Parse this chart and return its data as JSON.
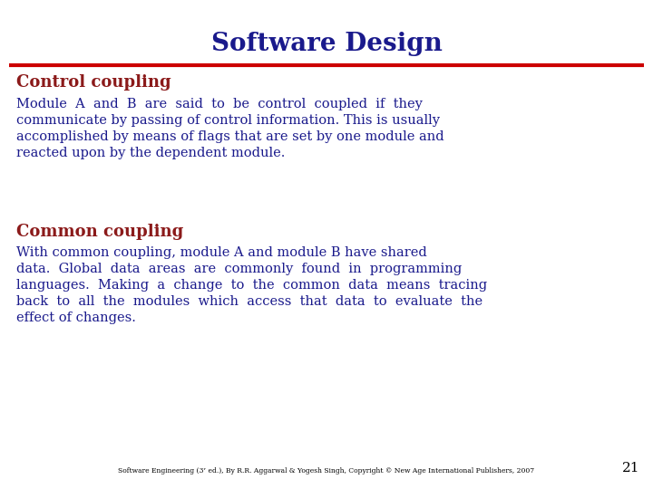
{
  "title": "Software Design",
  "title_color": "#1a1a8c",
  "title_fontsize": 20,
  "title_fontweight": "bold",
  "red_line_color": "#cc0000",
  "bg_color": "#ffffff",
  "section1_heading": "Control coupling",
  "section1_heading_color": "#8b1a1a",
  "section1_heading_fontsize": 13,
  "section1_heading_fontweight": "bold",
  "section1_text_color": "#1a1a8c",
  "section1_text_fontsize": 10.5,
  "section1_lines": [
    "Module  A  and  B  are  said  to  be  control  coupled  if  they",
    "communicate by passing of control information. This is usually",
    "accomplished by means of flags that are set by one module and",
    "reacted upon by the dependent module."
  ],
  "section2_heading": "Common coupling",
  "section2_heading_color": "#8b1a1a",
  "section2_heading_fontsize": 13,
  "section2_heading_fontweight": "bold",
  "section2_text_color": "#1a1a8c",
  "section2_text_fontsize": 10.5,
  "section2_lines": [
    "With common coupling, module A and module B have shared",
    "data.  Global  data  areas  are  commonly  found  in  programming",
    "languages.  Making  a  change  to  the  common  data  means  tracing",
    "back  to  all  the  modules  which  access  that  data  to  evaluate  the",
    "effect of changes."
  ],
  "footer_text": "Software Engineering (3ʳ ed.), By R.R. Aggarwal & Yogesh Singh, Copyright © New Age International Publishers, 2007",
  "footer_fontsize": 5.5,
  "footer_color": "#000000",
  "page_number": "21",
  "page_number_fontsize": 11,
  "page_number_color": "#000000"
}
